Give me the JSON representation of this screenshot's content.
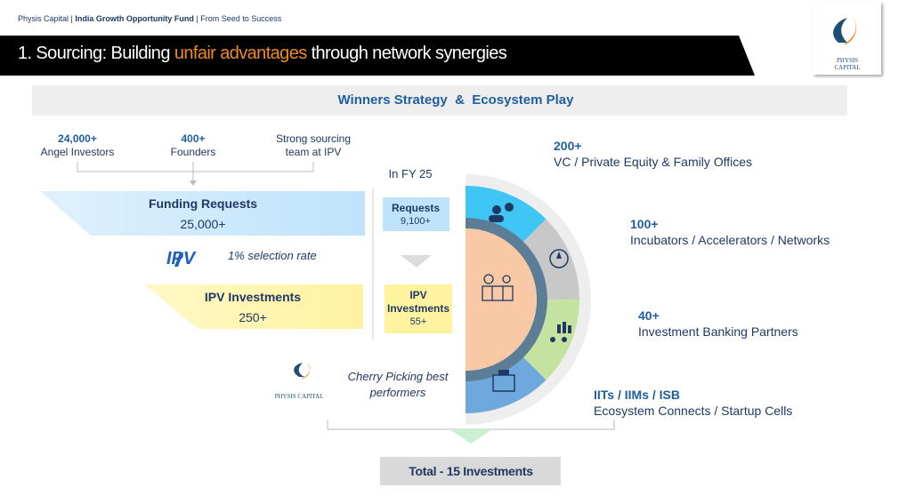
{
  "header": {
    "items": [
      "Physis Capital",
      "India Growth Opportunity Fund",
      "From Seed to Success"
    ],
    "separator": "|"
  },
  "title": {
    "before": "1. Sourcing: Building ",
    "highlight": "unfair advantages",
    "after": " through network synergies"
  },
  "logo": {
    "line1": "PHYSIS",
    "line2": "CAPITAL"
  },
  "banner": "Winners Strategy  &  Ecosystem Play",
  "sources": [
    {
      "value": "24,000+",
      "label": "Angel Investors"
    },
    {
      "value": "400+",
      "label": "Founders"
    },
    {
      "value": "Strong sourcing",
      "label": "team at IPV"
    }
  ],
  "funnel": {
    "requests": {
      "label": "Funding Requests",
      "value": "25,000+"
    },
    "ipv_logo": "IPV",
    "selection_rate": "1% selection rate",
    "investments": {
      "label": "IPV Investments",
      "value": "250+"
    },
    "physis_logo": "PHYSIS CAPITAL",
    "cherry_picking": [
      "Cherry Picking best",
      "performers"
    ]
  },
  "fy": {
    "title": "In FY 25",
    "requests": {
      "label": "Requests",
      "value": "9,100+"
    },
    "investments": {
      "label": [
        "IPV",
        "Investments"
      ],
      "value": "55+"
    }
  },
  "ecosystem": [
    {
      "value": "200+",
      "label": "VC / Private Equity & Family Offices"
    },
    {
      "value": "100+",
      "label": "Incubators / Accelerators / Networks"
    },
    {
      "value": "40+",
      "label": "Investment Banking Partners"
    },
    {
      "value": "IITs / IIMs / ISB",
      "label": "Ecosystem Connects / Startup Cells"
    }
  ],
  "total": "Total - 15 Investments"
}
